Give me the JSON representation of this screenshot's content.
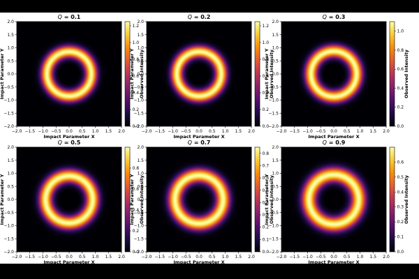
{
  "chart_data": [
    {
      "type": "heatmap",
      "title_prefix": "Q",
      "title_value": "0.1",
      "xlabel": "Impact Parameter X",
      "ylabel": "Impact Parameter Y",
      "colorbar_label": "Observed Intensity",
      "colormap": "inferno",
      "xlim": [
        -2.0,
        2.0
      ],
      "ylim": [
        -2.0,
        2.0
      ],
      "xticks": [
        "−2.0",
        "−1.5",
        "−1.0",
        "−0.5",
        "0.0",
        "0.5",
        "1.0",
        "1.5",
        "2.0"
      ],
      "yticks": [
        "−2.0",
        "−1.5",
        "−1.0",
        "−0.5",
        "0.0",
        "0.5",
        "1.0",
        "1.5",
        "2.0"
      ],
      "colorbar_range": [
        0.0,
        1.25
      ],
      "colorbar_ticks": [
        "0.0",
        "0.2",
        "0.4",
        "0.6",
        "0.8",
        "1.0",
        "1.2"
      ],
      "shadow_radius": 0.4,
      "ring_peak_radius": 0.85,
      "ring_width": 0.45
    },
    {
      "type": "heatmap",
      "title_prefix": "Q",
      "title_value": "0.2",
      "xlabel": "Impact Parameter X",
      "ylabel": "Impact Parameter Y",
      "colorbar_label": "Observed Intensity",
      "colormap": "inferno",
      "xlim": [
        -2.0,
        2.0
      ],
      "ylim": [
        -2.0,
        2.0
      ],
      "xticks": [
        "−2.0",
        "−1.5",
        "−1.0",
        "−0.5",
        "0.0",
        "0.5",
        "1.0",
        "1.5",
        "2.0"
      ],
      "yticks": [
        "−2.0",
        "−1.5",
        "−1.0",
        "−0.5",
        "0.0",
        "0.5",
        "1.0",
        "1.5",
        "2.0"
      ],
      "colorbar_range": [
        0.0,
        1.25
      ],
      "colorbar_ticks": [
        "0.0",
        "0.2",
        "0.4",
        "0.6",
        "0.8",
        "1.0",
        "1.2"
      ],
      "shadow_radius": 0.4,
      "ring_peak_radius": 0.85,
      "ring_width": 0.45
    },
    {
      "type": "heatmap",
      "title_prefix": "Q",
      "title_value": "0.3",
      "xlabel": "Impact Parameter X",
      "ylabel": "Impact Parameter Y",
      "colorbar_label": "Observed Intensity",
      "colormap": "inferno",
      "xlim": [
        -2.0,
        2.0
      ],
      "ylim": [
        -2.0,
        2.0
      ],
      "xticks": [
        "−2.0",
        "−1.5",
        "−1.0",
        "−0.5",
        "0.0",
        "0.5",
        "1.0",
        "1.5",
        "2.0"
      ],
      "yticks": [
        "−2.0",
        "−1.5",
        "−1.0",
        "−0.5",
        "0.0",
        "0.5",
        "1.0",
        "1.5",
        "2.0"
      ],
      "colorbar_range": [
        0.0,
        1.1
      ],
      "colorbar_ticks": [
        "0.0",
        "0.2",
        "0.4",
        "0.6",
        "0.8",
        "1.0"
      ],
      "shadow_radius": 0.4,
      "ring_peak_radius": 0.87,
      "ring_width": 0.47
    },
    {
      "type": "heatmap",
      "title_prefix": "Q",
      "title_value": "0.5",
      "xlabel": "Impact Parameter X",
      "ylabel": "Impact Parameter Y",
      "colorbar_label": "Observed Intensity",
      "colormap": "inferno",
      "xlim": [
        -2.0,
        2.0
      ],
      "ylim": [
        -2.0,
        2.0
      ],
      "xticks": [
        "−2.0",
        "−1.5",
        "−1.0",
        "−0.5",
        "0.0",
        "0.5",
        "1.0",
        "1.5",
        "2.0"
      ],
      "yticks": [
        "−2.0",
        "−1.5",
        "−1.0",
        "−0.5",
        "0.0",
        "0.5",
        "1.0",
        "1.5",
        "2.0"
      ],
      "colorbar_range": [
        0.0,
        1.0
      ],
      "colorbar_ticks": [
        "0.0",
        "0.2",
        "0.4",
        "0.6",
        "0.8"
      ],
      "shadow_radius": 0.4,
      "ring_peak_radius": 0.9,
      "ring_width": 0.5
    },
    {
      "type": "heatmap",
      "title_prefix": "Q",
      "title_value": "0.7",
      "xlabel": "Impact Parameter X",
      "ylabel": "Impact Parameter Y",
      "colorbar_label": "Observed Intensity",
      "colormap": "inferno",
      "xlim": [
        -2.0,
        2.0
      ],
      "ylim": [
        -2.0,
        2.0
      ],
      "xticks": [
        "−2.0",
        "−1.5",
        "−1.0",
        "−0.5",
        "0.0",
        "0.5",
        "1.0",
        "1.5",
        "2.0"
      ],
      "yticks": [
        "−2.0",
        "−1.5",
        "−1.0",
        "−0.5",
        "0.0",
        "0.5",
        "1.0",
        "1.5",
        "2.0"
      ],
      "colorbar_range": [
        0.0,
        0.85
      ],
      "colorbar_ticks": [
        "0.0",
        "0.1",
        "0.2",
        "0.3",
        "0.4",
        "0.5",
        "0.6",
        "0.7",
        "0.8"
      ],
      "shadow_radius": 0.38,
      "ring_peak_radius": 0.92,
      "ring_width": 0.52
    },
    {
      "type": "heatmap",
      "title_prefix": "Q",
      "title_value": "0.9",
      "xlabel": "Impact Parameter X",
      "ylabel": "Impact Parameter Y",
      "colorbar_label": "Observed Intensity",
      "colormap": "inferno",
      "xlim": [
        -2.0,
        2.0
      ],
      "ylim": [
        -2.0,
        2.0
      ],
      "xticks": [
        "−2.0",
        "−1.5",
        "−1.0",
        "−0.5",
        "0.0",
        "0.5",
        "1.0",
        "1.5",
        "2.0"
      ],
      "yticks": [
        "−2.0",
        "−1.5",
        "−1.0",
        "−0.5",
        "0.0",
        "0.5",
        "1.0",
        "1.5",
        "2.0"
      ],
      "colorbar_range": [
        0.0,
        0.7
      ],
      "colorbar_ticks": [
        "0.0",
        "0.1",
        "0.2",
        "0.3",
        "0.4",
        "0.5",
        "0.6"
      ],
      "shadow_radius": 0.36,
      "ring_peak_radius": 0.95,
      "ring_width": 0.55
    }
  ]
}
